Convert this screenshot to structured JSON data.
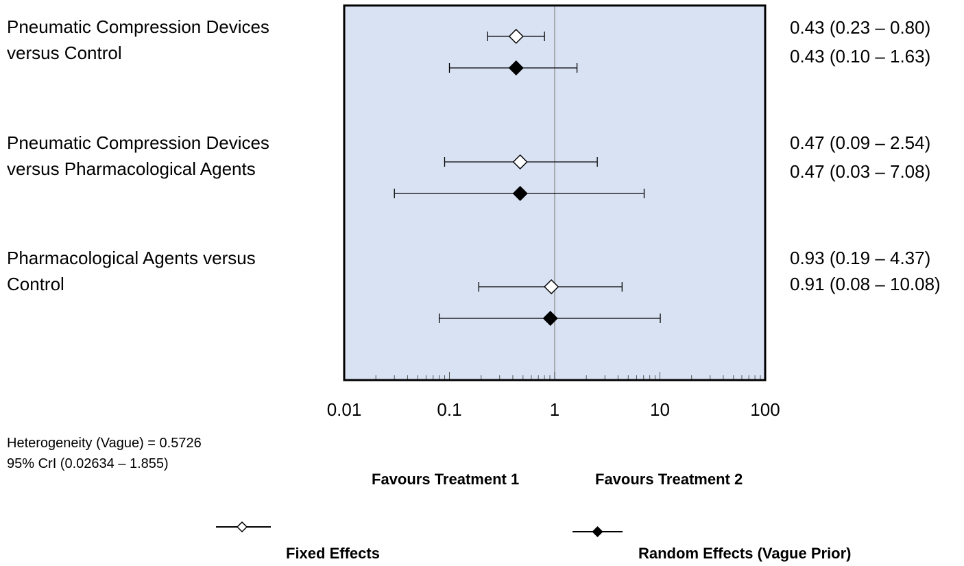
{
  "chart_data": {
    "type": "forest",
    "x_scale": "log",
    "xlim": [
      0.01,
      100
    ],
    "x_ticks": [
      "0.01",
      "0.1",
      "1",
      "10",
      "100"
    ],
    "reference_line": 1,
    "comparisons": [
      {
        "label_lines": [
          "Pneumatic Compression Devices",
          "versus Control"
        ],
        "fixed": {
          "est": 0.43,
          "lo": 0.23,
          "hi": 0.8,
          "text": "0.43 (0.23 – 0.80)"
        },
        "random": {
          "est": 0.43,
          "lo": 0.1,
          "hi": 1.63,
          "text": "0.43 (0.10 – 1.63)"
        }
      },
      {
        "label_lines": [
          "Pneumatic Compression Devices",
          "versus Pharmacological Agents"
        ],
        "fixed": {
          "est": 0.47,
          "lo": 0.09,
          "hi": 2.54,
          "text": "0.47 (0.09 – 2.54)"
        },
        "random": {
          "est": 0.47,
          "lo": 0.03,
          "hi": 7.08,
          "text": "0.47 (0.03 – 7.08)"
        }
      },
      {
        "label_lines": [
          "Pharmacological Agents versus",
          "Control"
        ],
        "fixed": {
          "est": 0.93,
          "lo": 0.19,
          "hi": 4.37,
          "text": "0.93 (0.19 – 4.37)"
        },
        "random": {
          "est": 0.91,
          "lo": 0.08,
          "hi": 10.08,
          "text": "0.91 (0.08 – 10.08)"
        }
      }
    ],
    "heterogeneity": [
      "Heterogeneity (Vague) = 0.5726",
      "95% CrI (0.02634 – 1.855)"
    ],
    "favours_left": "Favours Treatment 1",
    "favours_right": "Favours Treatment 2",
    "legend": [
      {
        "name": "Fixed Effects",
        "marker": "open-diamond"
      },
      {
        "name": "Random Effects (Vague Prior)",
        "marker": "filled-diamond"
      }
    ],
    "colors": {
      "panel": "#d9e2f3",
      "frame": "#000000",
      "reference": "#999999"
    }
  }
}
